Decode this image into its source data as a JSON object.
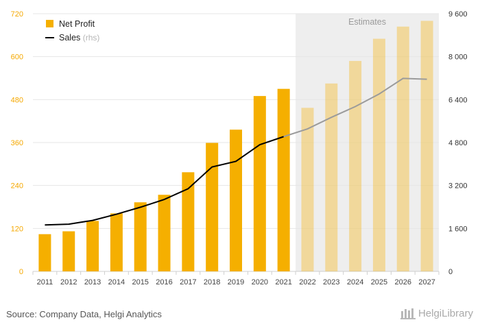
{
  "chart_data": {
    "type": "bar",
    "categories": [
      "2011",
      "2012",
      "2013",
      "2014",
      "2015",
      "2016",
      "2017",
      "2018",
      "2019",
      "2020",
      "2021",
      "2022",
      "2023",
      "2024",
      "2025",
      "2026",
      "2027"
    ],
    "series": [
      {
        "name": "Net Profit",
        "type": "bar",
        "axis": "left",
        "color": "#F5AF00",
        "values": [
          104,
          112,
          141,
          162,
          193,
          214,
          277,
          359,
          396,
          490,
          510,
          457,
          525,
          588,
          650,
          684,
          700
        ]
      },
      {
        "name": "Sales",
        "name_suffix": "(rhs)",
        "type": "line",
        "axis": "right",
        "color": "#000000",
        "values": [
          1730,
          1760,
          1900,
          2130,
          2390,
          2680,
          3080,
          3890,
          4100,
          4720,
          5020,
          5310,
          5740,
          6140,
          6610,
          7190,
          7160
        ]
      }
    ],
    "estimate_start_index": 11,
    "estimate_band_label": "Estimates",
    "y_left": {
      "min": 0,
      "max": 720,
      "ticks": [
        "0",
        "120",
        "240",
        "360",
        "480",
        "600",
        "720"
      ]
    },
    "y_right": {
      "min": 0,
      "max": 9600,
      "ticks": [
        "0",
        "1 600",
        "3 200",
        "4 800",
        "6 400",
        "8 000",
        "9 600"
      ]
    },
    "grid": true,
    "legend_position": "top-left"
  },
  "source_text": "Source: Company Data, Helgi Analytics",
  "logo_text": "HelgiLibrary"
}
